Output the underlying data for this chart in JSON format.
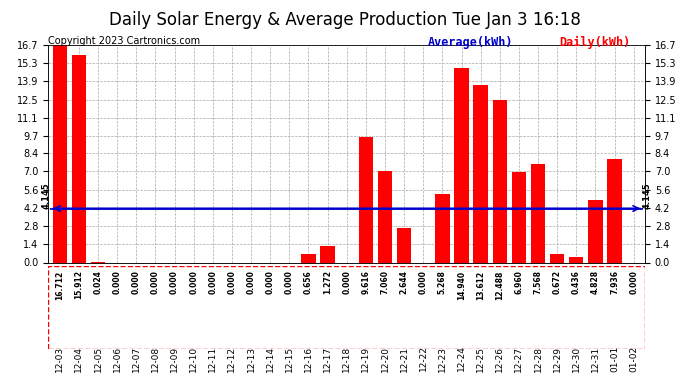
{
  "title": "Daily Solar Energy & Average Production Tue Jan 3 16:18",
  "copyright": "Copyright 2023 Cartronics.com",
  "categories": [
    "12-03",
    "12-04",
    "12-05",
    "12-06",
    "12-07",
    "12-08",
    "12-09",
    "12-10",
    "12-11",
    "12-12",
    "12-13",
    "12-14",
    "12-15",
    "12-16",
    "12-17",
    "12-18",
    "12-19",
    "12-20",
    "12-21",
    "12-22",
    "12-23",
    "12-24",
    "12-25",
    "12-26",
    "12-27",
    "12-28",
    "12-29",
    "12-30",
    "12-31",
    "01-01",
    "01-02"
  ],
  "values": [
    16.712,
    15.912,
    0.024,
    0.0,
    0.0,
    0.0,
    0.0,
    0.0,
    0.0,
    0.0,
    0.0,
    0.0,
    0.0,
    0.656,
    1.272,
    0.0,
    9.616,
    7.06,
    2.644,
    0.0,
    5.268,
    14.94,
    13.612,
    12.488,
    6.96,
    7.568,
    0.672,
    0.436,
    4.828,
    7.936,
    0.0
  ],
  "average": 4.145,
  "bar_color": "#ff0000",
  "avg_line_color": "#0000cc",
  "background_color": "#ffffff",
  "plot_bg_color": "#ffffff",
  "grid_color": "#aaaaaa",
  "ylim": [
    0,
    16.7
  ],
  "yticks": [
    0.0,
    1.4,
    2.8,
    4.2,
    5.6,
    7.0,
    8.4,
    9.7,
    11.1,
    12.5,
    13.9,
    15.3,
    16.7
  ],
  "title_fontsize": 12,
  "copyright_fontsize": 7,
  "legend_avg_label": "Average(kWh)",
  "legend_daily_label": "Daily(kWh)",
  "avg_label": "4.145",
  "bar_value_fontsize": 5.5,
  "xlabel_fontsize": 6.5,
  "ylabel_fontsize": 7
}
